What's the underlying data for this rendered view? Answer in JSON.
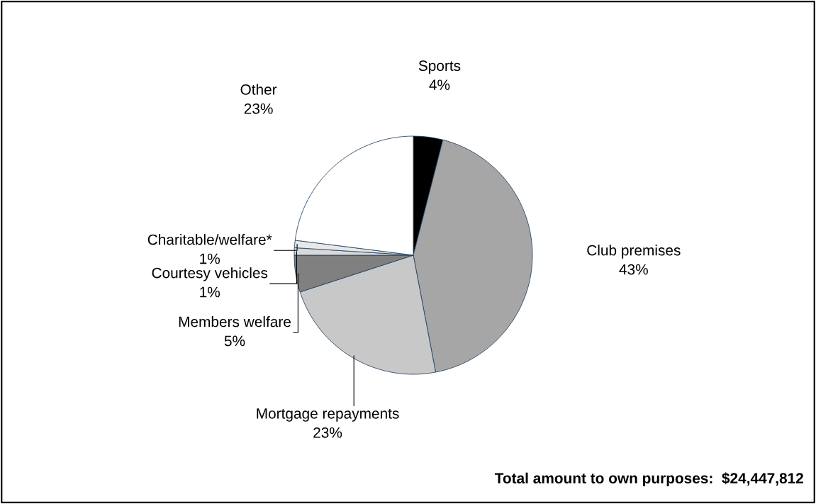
{
  "chart_data": {
    "type": "pie",
    "categories": [
      "Sports",
      "Club premises",
      "Mortgage repayments",
      "Members welfare",
      "Courtesy vehicles",
      "Charitable/welfare*",
      "Other"
    ],
    "values": [
      4,
      43,
      23,
      5,
      1,
      1,
      23
    ],
    "colors": [
      "#000000",
      "#a6a6a6",
      "#c8c8c8",
      "#808080",
      "#d9d9d9",
      "#e8e8e8",
      "#ffffff"
    ],
    "value_labels": [
      "4%",
      "43%",
      "23%",
      "5%",
      "1%",
      "1%",
      "23%"
    ],
    "annotations": [
      "Total amount to own purposes:  $24,447,812"
    ]
  }
}
